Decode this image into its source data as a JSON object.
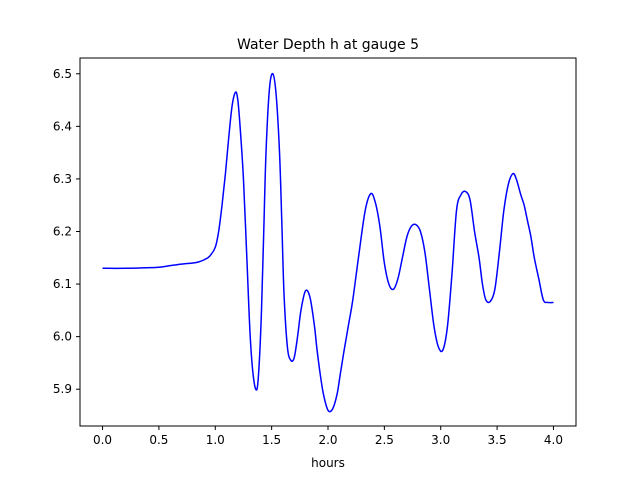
{
  "chart_data": {
    "type": "line",
    "title": "Water Depth h at gauge 5",
    "xlabel": "hours",
    "ylabel": "",
    "xlim": [
      -0.2,
      4.2
    ],
    "ylim": [
      5.83,
      6.53
    ],
    "xticks": [
      0.0,
      0.5,
      1.0,
      1.5,
      2.0,
      2.5,
      3.0,
      3.5,
      4.0
    ],
    "xtick_labels": [
      "0.0",
      "0.5",
      "1.0",
      "1.5",
      "2.0",
      "2.5",
      "3.0",
      "3.5",
      "4.0"
    ],
    "yticks": [
      5.9,
      6.0,
      6.1,
      6.2,
      6.3,
      6.4,
      6.5
    ],
    "ytick_labels": [
      "5.9",
      "6.0",
      "6.1",
      "6.2",
      "6.3",
      "6.4",
      "6.5"
    ],
    "grid": false,
    "series": [
      {
        "color": "#0000ff",
        "x": [
          0.0,
          0.2,
          0.4,
          0.5,
          0.6,
          0.7,
          0.8,
          0.85,
          0.9,
          0.95,
          1.0,
          1.03,
          1.06,
          1.09,
          1.12,
          1.15,
          1.18,
          1.2,
          1.22,
          1.25,
          1.28,
          1.31,
          1.34,
          1.37,
          1.39,
          1.41,
          1.43,
          1.45,
          1.48,
          1.51,
          1.54,
          1.57,
          1.59,
          1.61,
          1.64,
          1.67,
          1.7,
          1.73,
          1.76,
          1.8,
          1.84,
          1.88,
          1.9,
          1.93,
          1.96,
          2.0,
          2.04,
          2.08,
          2.11,
          2.14,
          2.18,
          2.22,
          2.27,
          2.33,
          2.38,
          2.42,
          2.46,
          2.5,
          2.54,
          2.58,
          2.62,
          2.66,
          2.7,
          2.74,
          2.78,
          2.82,
          2.86,
          2.9,
          2.94,
          2.98,
          3.02,
          3.06,
          3.1,
          3.14,
          3.18,
          3.22,
          3.26,
          3.3,
          3.34,
          3.37,
          3.4,
          3.44,
          3.48,
          3.52,
          3.56,
          3.6,
          3.64,
          3.67,
          3.71,
          3.74,
          3.77,
          3.8,
          3.83,
          3.87,
          3.91,
          3.95,
          4.0
        ],
        "y": [
          6.13,
          6.13,
          6.131,
          6.132,
          6.135,
          6.138,
          6.14,
          6.142,
          6.146,
          6.153,
          6.17,
          6.2,
          6.25,
          6.31,
          6.38,
          6.44,
          6.465,
          6.45,
          6.4,
          6.3,
          6.15,
          6.0,
          5.92,
          5.9,
          5.95,
          6.05,
          6.2,
          6.35,
          6.47,
          6.5,
          6.46,
          6.35,
          6.22,
          6.08,
          5.98,
          5.955,
          5.96,
          6.0,
          6.05,
          6.087,
          6.075,
          6.02,
          5.98,
          5.93,
          5.89,
          5.86,
          5.862,
          5.89,
          5.93,
          5.97,
          6.02,
          6.07,
          6.15,
          6.24,
          6.272,
          6.255,
          6.21,
          6.14,
          6.1,
          6.09,
          6.11,
          6.15,
          6.19,
          6.21,
          6.213,
          6.2,
          6.16,
          6.09,
          6.02,
          5.98,
          5.975,
          6.02,
          6.12,
          6.24,
          6.27,
          6.276,
          6.26,
          6.2,
          6.15,
          6.1,
          6.07,
          6.067,
          6.09,
          6.16,
          6.24,
          6.29,
          6.31,
          6.3,
          6.27,
          6.25,
          6.22,
          6.19,
          6.15,
          6.11,
          6.07,
          6.065,
          6.065
        ]
      }
    ]
  }
}
